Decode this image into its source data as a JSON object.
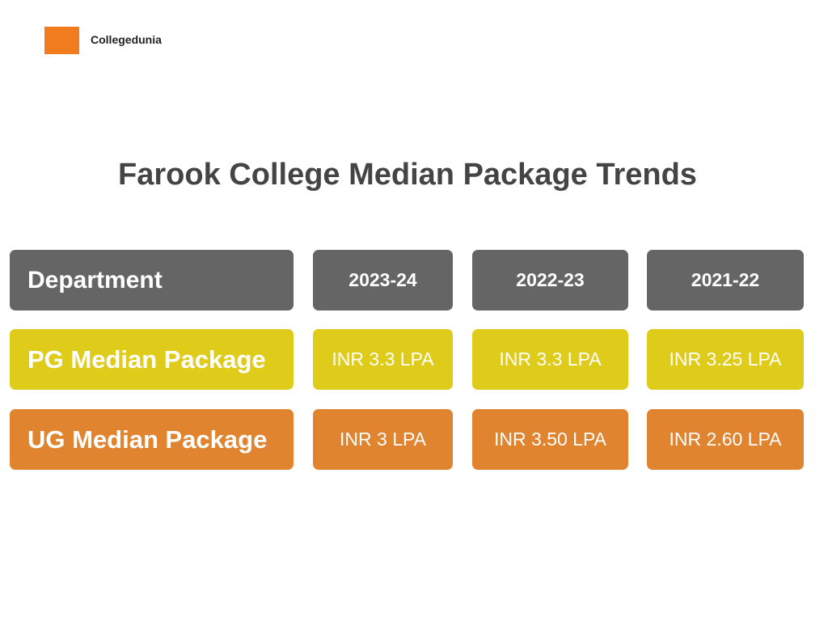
{
  "header": {
    "brand": "Collegedunia"
  },
  "title": "Farook College Median Package Trends",
  "table": {
    "columns": [
      "Department",
      "2023-24",
      "2022-23",
      "2021-22"
    ],
    "rows": [
      [
        "PG Median Package",
        "INR 3.3 LPA",
        "INR 3.3 LPA",
        "INR 3.25 LPA"
      ],
      [
        "UG Median Package",
        "INR 3 LPA",
        "INR 3.50 LPA",
        "INR 2.60 LPA"
      ]
    ]
  }
}
